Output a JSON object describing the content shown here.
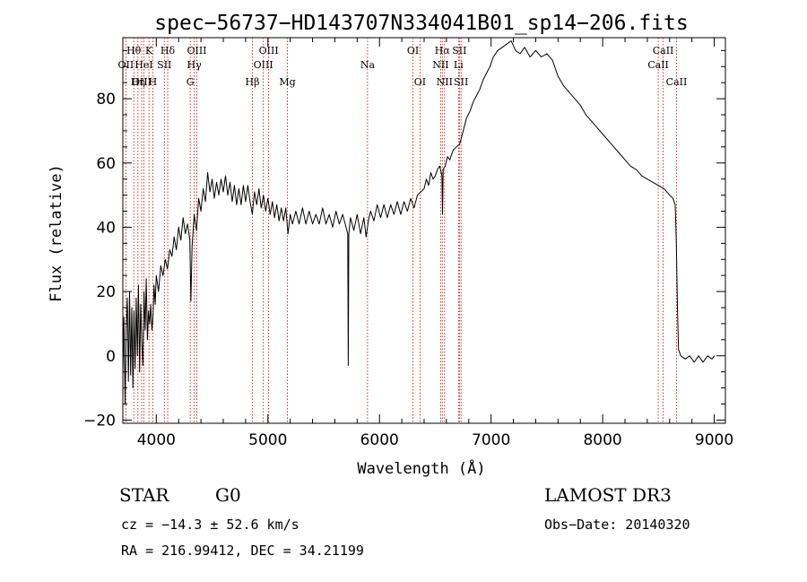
{
  "chart_data": {
    "type": "line",
    "title": "spec−56737−HD143707N334041B01_sp14−206.fits",
    "xlabel": "Wavelength (Å)",
    "ylabel": "Flux (relative)",
    "xlim": [
      3700,
      9100
    ],
    "ylim": [
      -21,
      99
    ],
    "x_ticks": [
      4000,
      5000,
      6000,
      7000,
      8000,
      9000
    ],
    "x_tick_labels": [
      "4000",
      "5000",
      "6000",
      "7000",
      "8000",
      "9000"
    ],
    "y_ticks": [
      -20,
      0,
      20,
      40,
      60,
      80
    ],
    "y_tick_labels": [
      "−20",
      "0",
      "20",
      "40",
      "60",
      "80"
    ],
    "series": [
      {
        "name": "flux",
        "color": "#000000",
        "points": [
          [
            3700,
            -5
          ],
          [
            3710,
            12
          ],
          [
            3720,
            -15
          ],
          [
            3730,
            8
          ],
          [
            3740,
            18
          ],
          [
            3750,
            -8
          ],
          [
            3760,
            20
          ],
          [
            3770,
            -6
          ],
          [
            3780,
            15
          ],
          [
            3790,
            -10
          ],
          [
            3800,
            14
          ],
          [
            3810,
            -4
          ],
          [
            3820,
            18
          ],
          [
            3830,
            0
          ],
          [
            3840,
            22
          ],
          [
            3850,
            -5
          ],
          [
            3860,
            16
          ],
          [
            3870,
            4
          ],
          [
            3880,
            -3
          ],
          [
            3890,
            20
          ],
          [
            3900,
            8
          ],
          [
            3910,
            24
          ],
          [
            3920,
            5
          ],
          [
            3930,
            14
          ],
          [
            3940,
            10
          ],
          [
            3950,
            16
          ],
          [
            3960,
            8
          ],
          [
            3970,
            12
          ],
          [
            3980,
            22
          ],
          [
            3990,
            16
          ],
          [
            4000,
            25
          ],
          [
            4020,
            20
          ],
          [
            4040,
            28
          ],
          [
            4060,
            25
          ],
          [
            4080,
            30
          ],
          [
            4100,
            27
          ],
          [
            4120,
            33
          ],
          [
            4140,
            31
          ],
          [
            4160,
            37
          ],
          [
            4180,
            33
          ],
          [
            4200,
            40
          ],
          [
            4220,
            36
          ],
          [
            4240,
            43
          ],
          [
            4260,
            38
          ],
          [
            4280,
            41
          ],
          [
            4300,
            36
          ],
          [
            4310,
            17
          ],
          [
            4320,
            34
          ],
          [
            4340,
            44
          ],
          [
            4360,
            39
          ],
          [
            4380,
            49
          ],
          [
            4400,
            45
          ],
          [
            4420,
            52
          ],
          [
            4440,
            48
          ],
          [
            4460,
            57
          ],
          [
            4480,
            51
          ],
          [
            4500,
            55
          ],
          [
            4520,
            49
          ],
          [
            4540,
            54
          ],
          [
            4560,
            50
          ],
          [
            4580,
            55
          ],
          [
            4600,
            51
          ],
          [
            4620,
            56
          ],
          [
            4640,
            50
          ],
          [
            4660,
            54
          ],
          [
            4680,
            48
          ],
          [
            4700,
            53
          ],
          [
            4720,
            47
          ],
          [
            4740,
            52
          ],
          [
            4760,
            47
          ],
          [
            4780,
            53
          ],
          [
            4800,
            48
          ],
          [
            4820,
            53
          ],
          [
            4840,
            48
          ],
          [
            4860,
            44
          ],
          [
            4880,
            51
          ],
          [
            4900,
            47
          ],
          [
            4920,
            52
          ],
          [
            4940,
            46
          ],
          [
            4960,
            50
          ],
          [
            4980,
            45
          ],
          [
            5000,
            49
          ],
          [
            5020,
            44
          ],
          [
            5040,
            48
          ],
          [
            5060,
            43
          ],
          [
            5080,
            47
          ],
          [
            5100,
            42
          ],
          [
            5120,
            46
          ],
          [
            5140,
            42
          ],
          [
            5160,
            46
          ],
          [
            5180,
            38
          ],
          [
            5200,
            44
          ],
          [
            5220,
            41
          ],
          [
            5250,
            45
          ],
          [
            5280,
            41
          ],
          [
            5310,
            46
          ],
          [
            5340,
            41
          ],
          [
            5370,
            45
          ],
          [
            5400,
            41
          ],
          [
            5430,
            44
          ],
          [
            5460,
            41
          ],
          [
            5490,
            46
          ],
          [
            5520,
            41
          ],
          [
            5550,
            44
          ],
          [
            5580,
            40
          ],
          [
            5610,
            45
          ],
          [
            5640,
            41
          ],
          [
            5670,
            44
          ],
          [
            5700,
            40
          ],
          [
            5715,
            38
          ],
          [
            5720,
            -3
          ],
          [
            5725,
            38
          ],
          [
            5740,
            43
          ],
          [
            5770,
            39
          ],
          [
            5800,
            44
          ],
          [
            5830,
            38
          ],
          [
            5860,
            43
          ],
          [
            5880,
            37
          ],
          [
            5900,
            42
          ],
          [
            5920,
            45
          ],
          [
            5950,
            42
          ],
          [
            5980,
            47
          ],
          [
            6010,
            43
          ],
          [
            6040,
            47
          ],
          [
            6070,
            43
          ],
          [
            6100,
            47
          ],
          [
            6130,
            44
          ],
          [
            6160,
            48
          ],
          [
            6190,
            44
          ],
          [
            6220,
            48
          ],
          [
            6250,
            45
          ],
          [
            6280,
            49
          ],
          [
            6310,
            46
          ],
          [
            6340,
            50
          ],
          [
            6370,
            51
          ],
          [
            6400,
            52
          ],
          [
            6420,
            55
          ],
          [
            6440,
            53
          ],
          [
            6460,
            57
          ],
          [
            6480,
            55
          ],
          [
            6500,
            56
          ],
          [
            6520,
            58
          ],
          [
            6540,
            59
          ],
          [
            6560,
            56
          ],
          [
            6565,
            44
          ],
          [
            6570,
            58
          ],
          [
            6590,
            59
          ],
          [
            6610,
            62
          ],
          [
            6630,
            61
          ],
          [
            6660,
            64
          ],
          [
            6690,
            65
          ],
          [
            6720,
            66
          ],
          [
            6750,
            70
          ],
          [
            6780,
            74
          ],
          [
            6810,
            76
          ],
          [
            6840,
            79
          ],
          [
            6870,
            81
          ],
          [
            6900,
            83
          ],
          [
            6930,
            86
          ],
          [
            6960,
            88
          ],
          [
            6990,
            90
          ],
          [
            7020,
            93
          ],
          [
            7060,
            95
          ],
          [
            7100,
            96
          ],
          [
            7140,
            97
          ],
          [
            7180,
            98
          ],
          [
            7220,
            95
          ],
          [
            7260,
            94
          ],
          [
            7300,
            96
          ],
          [
            7350,
            93
          ],
          [
            7400,
            95
          ],
          [
            7450,
            93
          ],
          [
            7500,
            94
          ],
          [
            7550,
            92
          ],
          [
            7600,
            87
          ],
          [
            7650,
            84
          ],
          [
            7700,
            82
          ],
          [
            7750,
            80
          ],
          [
            7800,
            78
          ],
          [
            7850,
            75
          ],
          [
            7900,
            73
          ],
          [
            7950,
            71
          ],
          [
            8000,
            69
          ],
          [
            8050,
            67
          ],
          [
            8100,
            65
          ],
          [
            8150,
            63
          ],
          [
            8200,
            61
          ],
          [
            8250,
            59
          ],
          [
            8300,
            58
          ],
          [
            8350,
            56
          ],
          [
            8400,
            55
          ],
          [
            8450,
            54
          ],
          [
            8500,
            53
          ],
          [
            8550,
            52
          ],
          [
            8600,
            50
          ],
          [
            8630,
            49
          ],
          [
            8650,
            47
          ],
          [
            8660,
            36
          ],
          [
            8670,
            15
          ],
          [
            8680,
            2
          ],
          [
            8700,
            0
          ],
          [
            8740,
            -1
          ],
          [
            8780,
            0
          ],
          [
            8820,
            -2
          ],
          [
            8860,
            0
          ],
          [
            8900,
            -2
          ],
          [
            8940,
            0
          ],
          [
            8980,
            -1
          ],
          [
            9000,
            0
          ]
        ]
      }
    ],
    "spectral_lines": [
      {
        "name": "Hθ",
        "wavelength": 3798,
        "row": 1
      },
      {
        "name": "OII",
        "wavelength": 3727,
        "row": 2
      },
      {
        "name": "OIII",
        "wavelength": 3869,
        "row": 3
      },
      {
        "name": "Hη",
        "wavelength": 3835,
        "row": 3
      },
      {
        "name": "K",
        "wavelength": 3934,
        "row": 1
      },
      {
        "name": "HeI",
        "wavelength": 3889,
        "row": 2
      },
      {
        "name": "H",
        "wavelength": 3969,
        "row": 3
      },
      {
        "name": "Hδ",
        "wavelength": 4102,
        "row": 1
      },
      {
        "name": "SII",
        "wavelength": 4072,
        "row": 2
      },
      {
        "name": "OIII",
        "wavelength": 4363,
        "row": 1
      },
      {
        "name": "Hγ",
        "wavelength": 4340,
        "row": 2
      },
      {
        "name": "G",
        "wavelength": 4304,
        "row": 3
      },
      {
        "name": "Hβ",
        "wavelength": 4861,
        "row": 3
      },
      {
        "name": "OIII",
        "wavelength": 5007,
        "row": 1
      },
      {
        "name": "OIII",
        "wavelength": 4959,
        "row": 2
      },
      {
        "name": "Mg",
        "wavelength": 5175,
        "row": 3
      },
      {
        "name": "Na",
        "wavelength": 5893,
        "row": 2
      },
      {
        "name": "OI",
        "wavelength": 6300,
        "row": 1
      },
      {
        "name": "OI",
        "wavelength": 6363,
        "row": 3
      },
      {
        "name": "Hα",
        "wavelength": 6563,
        "row": 1
      },
      {
        "name": "NII",
        "wavelength": 6548,
        "row": 2
      },
      {
        "name": "NII",
        "wavelength": 6583,
        "row": 3
      },
      {
        "name": "SII",
        "wavelength": 6716,
        "row": 1
      },
      {
        "name": "Li",
        "wavelength": 6708,
        "row": 2
      },
      {
        "name": "SII",
        "wavelength": 6731,
        "row": 3
      },
      {
        "name": "CaII",
        "wavelength": 8542,
        "row": 1
      },
      {
        "name": "CaII",
        "wavelength": 8498,
        "row": 2
      },
      {
        "name": "CaII",
        "wavelength": 8662,
        "row": 3
      }
    ],
    "spectral_line_color": "#cc0000"
  },
  "info": {
    "object_class": "STAR",
    "subclass": "G0",
    "survey": "LAMOST DR3",
    "redshift_text": "cz = −14.3 ± 52.6 km/s",
    "obs_date": "Obs−Date: 20140320",
    "coords_text": "RA = 216.99412, DEC =  34.21199"
  }
}
